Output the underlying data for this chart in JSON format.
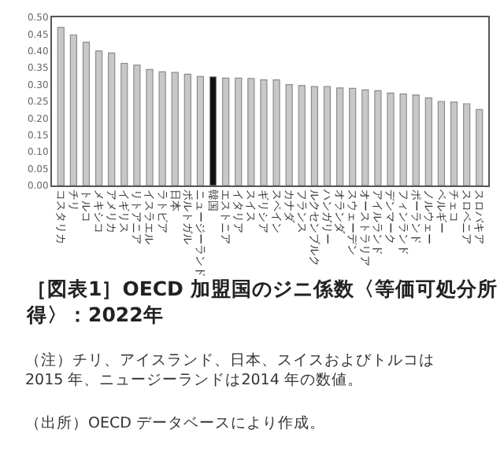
{
  "chart_data": {
    "type": "bar",
    "title": "［図表1］OECD 加盟国のジニ係数〈等価可処分所得〉：2022年",
    "categories": [
      "コスタリカ",
      "チリ",
      "トルコ",
      "メキシコ",
      "アメリカ",
      "イギリス",
      "リトアニア",
      "イスラエル",
      "ラトビア",
      "日本",
      "ポルトガル",
      "ニュージーランド",
      "韓国",
      "エストニア",
      "イタリア",
      "スイス",
      "ギリシア",
      "スペイン",
      "カナダ",
      "フランス",
      "ルクセンブルク",
      "ハンガリー",
      "オランダ",
      "スウェーデン",
      "オーストラリア",
      "アイルランド",
      "デンマーク",
      "フィンランド",
      "ポーランド",
      "ノルウェー",
      "ベルギー",
      "チェコ",
      "スロベニア",
      "スロバキア"
    ],
    "values": [
      0.47,
      0.448,
      0.426,
      0.4,
      0.394,
      0.363,
      0.358,
      0.345,
      0.338,
      0.336,
      0.331,
      0.324,
      0.323,
      0.319,
      0.319,
      0.318,
      0.314,
      0.314,
      0.3,
      0.297,
      0.294,
      0.294,
      0.29,
      0.289,
      0.284,
      0.282,
      0.275,
      0.272,
      0.269,
      0.26,
      0.25,
      0.248,
      0.243,
      0.226
    ],
    "colors": [
      "#c8c8c8",
      "#c8c8c8",
      "#c8c8c8",
      "#c8c8c8",
      "#c8c8c8",
      "#c8c8c8",
      "#c8c8c8",
      "#c8c8c8",
      "#c8c8c8",
      "#c8c8c8",
      "#c8c8c8",
      "#c8c8c8",
      "#111111",
      "#c8c8c8",
      "#c8c8c8",
      "#c8c8c8",
      "#c8c8c8",
      "#c8c8c8",
      "#c8c8c8",
      "#c8c8c8",
      "#c8c8c8",
      "#c8c8c8",
      "#c8c8c8",
      "#c8c8c8",
      "#c8c8c8",
      "#c8c8c8",
      "#c8c8c8",
      "#c8c8c8",
      "#c8c8c8",
      "#c8c8c8",
      "#c8c8c8",
      "#c8c8c8",
      "#c8c8c8",
      "#c8c8c8"
    ],
    "ylim": [
      0,
      0.5
    ],
    "yticks": [
      {
        "value": 0,
        "label": "0.00"
      },
      {
        "value": 0.05,
        "label": "0.05"
      },
      {
        "value": 0.1,
        "label": "0.10"
      },
      {
        "value": 0.15,
        "label": "0.15"
      },
      {
        "value": 0.2,
        "label": "0.20"
      },
      {
        "value": 0.25,
        "label": "0.25"
      },
      {
        "value": 0.3,
        "label": "0.30"
      },
      {
        "value": 0.35,
        "label": "0.35"
      },
      {
        "value": 0.4,
        "label": "0.40"
      },
      {
        "value": 0.45,
        "label": "0.45"
      },
      {
        "value": 0.5,
        "label": "0.50"
      }
    ],
    "annotations": [
      "（注）チリ、アイスランド、日本、スイスおよびトルコは2015 年、ニュージーランドは2014 年の数値。",
      "（出所）OECD データベースにより作成。"
    ]
  }
}
